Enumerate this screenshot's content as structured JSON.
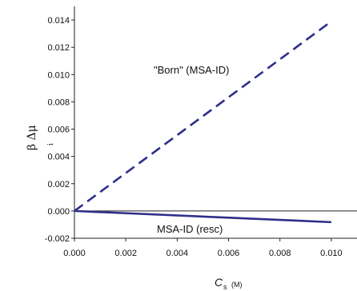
{
  "chart_data": {
    "type": "line",
    "xlabel": {
      "main": "C",
      "sub": "s",
      "unit": "(M)"
    },
    "ylabel": {
      "main": "β Δμ",
      "sub": "i"
    },
    "xlim": [
      0.0,
      0.011
    ],
    "ylim": [
      -0.002,
      0.015
    ],
    "x_ticks": [
      "0.000",
      "0.002",
      "0.004",
      "0.006",
      "0.008",
      "0.010"
    ],
    "y_ticks": [
      "-0.002",
      "0.000",
      "0.002",
      "0.004",
      "0.006",
      "0.008",
      "0.010",
      "0.012",
      "0.014"
    ],
    "series": [
      {
        "name": "\"Born\" (MSA-ID)",
        "style": "dashed",
        "color": "#2e2e8a",
        "x": [
          0.0,
          0.01
        ],
        "y": [
          0.0,
          0.0139
        ]
      },
      {
        "name": "MSA-ID (resc)",
        "style": "solid",
        "color": "#2e2e8a",
        "x": [
          0.0,
          0.01
        ],
        "y": [
          0.0,
          -0.00082
        ]
      }
    ],
    "grid": false
  }
}
